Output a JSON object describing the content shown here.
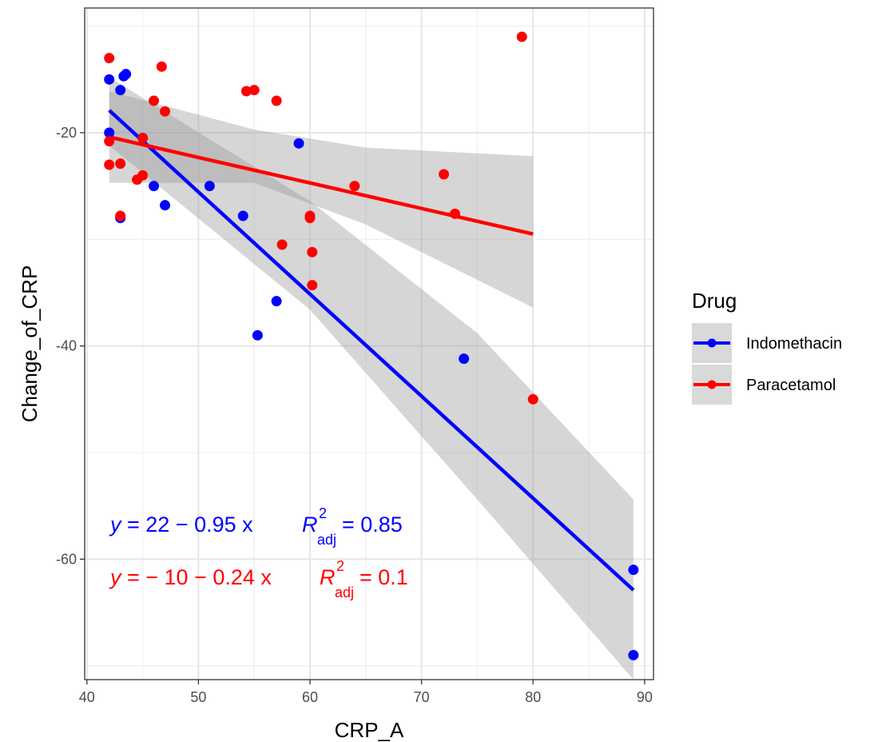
{
  "chart_data": {
    "type": "scatter",
    "title": "",
    "xlabel": "CRP_A",
    "ylabel": "Change_of_CRP",
    "xlim": [
      39.8,
      90.8
    ],
    "ylim": [
      -71.3,
      -8.3
    ],
    "x_ticks": [
      40,
      50,
      60,
      70,
      80,
      90
    ],
    "y_ticks": [
      -20,
      -40,
      -60
    ],
    "grid": true,
    "legend": {
      "title": "Drug",
      "placement": "right",
      "entries": [
        "Indomethacin",
        "Paracetamol"
      ]
    },
    "series": [
      {
        "name": "Indomethacin",
        "color": "#0000ff",
        "points": [
          [
            42,
            -15
          ],
          [
            43,
            -16
          ],
          [
            43.3,
            -14.7
          ],
          [
            43.5,
            -14.5
          ],
          [
            42,
            -20
          ],
          [
            43,
            -28
          ],
          [
            45,
            -20.5
          ],
          [
            46,
            -25
          ],
          [
            47,
            -26.8
          ],
          [
            51,
            -25
          ],
          [
            54,
            -27.8
          ],
          [
            55.3,
            -39
          ],
          [
            57,
            -35.8
          ],
          [
            59,
            -21
          ],
          [
            73.8,
            -41.2
          ],
          [
            89,
            -61
          ],
          [
            89,
            -69
          ]
        ],
        "fit": {
          "x": [
            42,
            89
          ],
          "y": [
            -17.9,
            -62.9
          ]
        },
        "band": {
          "x": [
            42,
            60,
            75,
            89
          ],
          "upper": [
            -14.8,
            -26.4,
            -38.8,
            -54.4
          ],
          "lower": [
            -21.2,
            -36.6,
            -54.4,
            -71.3
          ]
        },
        "equation": {
          "lhs": "y",
          "rhs": " = 22 − 0.95 x",
          "r": "R",
          "sup": "2",
          "sub": "adj",
          "value": " = 0.85"
        }
      },
      {
        "name": "Paracetamol",
        "color": "#ff0000",
        "points": [
          [
            42,
            -13
          ],
          [
            46.7,
            -13.8
          ],
          [
            46,
            -17
          ],
          [
            47,
            -18
          ],
          [
            54.3,
            -16.1
          ],
          [
            55,
            -16
          ],
          [
            57,
            -17
          ],
          [
            42,
            -20.8
          ],
          [
            42,
            -23
          ],
          [
            43,
            -22.9
          ],
          [
            45,
            -20.5
          ],
          [
            44.5,
            -24.4
          ],
          [
            45,
            -24
          ],
          [
            43,
            -27.8
          ],
          [
            57.5,
            -30.5
          ],
          [
            60,
            -27.8
          ],
          [
            60,
            -28
          ],
          [
            60.2,
            -31.2
          ],
          [
            60.2,
            -34.3
          ],
          [
            64,
            -25
          ],
          [
            72,
            -23.9
          ],
          [
            73,
            -27.6
          ],
          [
            79,
            -11
          ],
          [
            80,
            -45
          ]
        ],
        "fit": {
          "x": [
            42,
            80
          ],
          "y": [
            -20.4,
            -29.5
          ]
        },
        "band": {
          "x": [
            42,
            55,
            65,
            80
          ],
          "upper": [
            -16.1,
            -19.7,
            -21.4,
            -22.2
          ],
          "lower": [
            -24.7,
            -24.7,
            -28.6,
            -36.4
          ]
        },
        "equation": {
          "lhs": "y",
          "rhs": " = − 10 − 0.24 x",
          "r": "R",
          "sup": "2",
          "sub": "adj",
          "value": " = 0.1"
        }
      }
    ]
  }
}
